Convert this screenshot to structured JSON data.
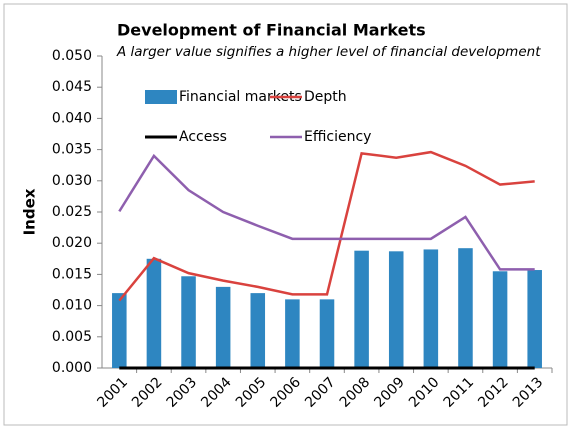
{
  "chart_data": {
    "type": "bar-line",
    "title": "Development of Financial Markets",
    "subtitle": "A larger value signifies a higher level of financial development",
    "y_label": "Index",
    "categories": [
      "2001",
      "2002",
      "2003",
      "2004",
      "2005",
      "2006",
      "2007",
      "2008",
      "2009",
      "2010",
      "2011",
      "2012",
      "2013"
    ],
    "series": [
      {
        "name": "Financial markets",
        "type": "bar",
        "color": "#2e86c1",
        "values": [
          0.012,
          0.0175,
          0.0147,
          0.013,
          0.012,
          0.011,
          0.011,
          0.0188,
          0.0187,
          0.019,
          0.0192,
          0.0155,
          0.0157
        ]
      },
      {
        "name": "Depth",
        "type": "line",
        "color": "#d9423e",
        "values": [
          0.0108,
          0.0176,
          0.0152,
          0.014,
          0.013,
          0.0118,
          0.0118,
          0.0344,
          0.0337,
          0.0346,
          0.0324,
          0.0294,
          0.0299
        ]
      },
      {
        "name": "Access",
        "type": "line",
        "color": "#000000",
        "values": [
          0,
          0,
          0,
          0,
          0,
          0,
          0,
          0,
          0,
          0,
          0,
          0,
          0
        ]
      },
      {
        "name": "Efficiency",
        "type": "line",
        "color": "#8e5fae",
        "values": [
          0.0251,
          0.034,
          0.0285,
          0.025,
          0.0228,
          0.0207,
          0.0207,
          0.0207,
          0.0207,
          0.0207,
          0.0242,
          0.0158,
          0.0158
        ]
      }
    ],
    "ylim": [
      0,
      0.05
    ],
    "yticks": [
      {
        "value": 0,
        "label": "0.000"
      },
      {
        "value": 0.005,
        "label": "0.005"
      },
      {
        "value": 0.01,
        "label": "0.010"
      },
      {
        "value": 0.015,
        "label": "0.015"
      },
      {
        "value": 0.02,
        "label": "0.020"
      },
      {
        "value": 0.025,
        "label": "0.025"
      },
      {
        "value": 0.03,
        "label": "0.030"
      },
      {
        "value": 0.035,
        "label": "0.035"
      },
      {
        "value": 0.04,
        "label": "0.040"
      },
      {
        "value": 0.045,
        "label": "0.045"
      },
      {
        "value": 0.05,
        "label": "0.050"
      }
    ],
    "grid": false,
    "legend": "top"
  }
}
